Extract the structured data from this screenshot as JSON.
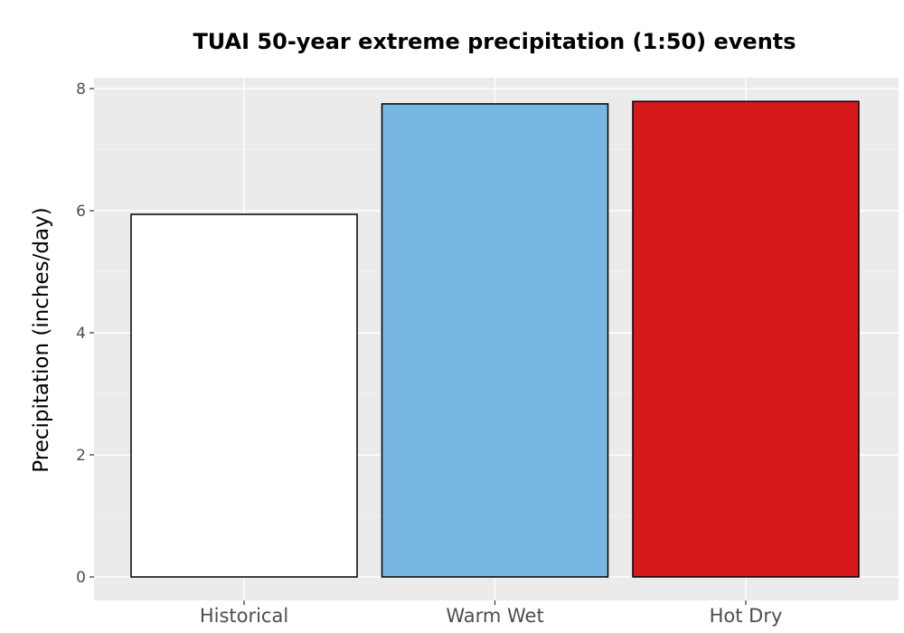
{
  "chart_data": {
    "type": "bar",
    "title": "TUAI 50-year extreme precipitation (1:50) events",
    "xlabel": "",
    "ylabel": "Precipitation (inches/day)",
    "categories": [
      "Historical",
      "Warm Wet",
      "Hot Dry"
    ],
    "values": [
      5.94,
      7.75,
      7.79
    ],
    "colors": [
      "#ffffff",
      "#78b7e1",
      "#d7191c"
    ],
    "bar_outline": "#000000",
    "ylim": [
      0,
      8
    ],
    "yticks": [
      "0",
      "2",
      "4",
      "6",
      "8"
    ],
    "panel_background": "#ebebeb",
    "grid": true,
    "legend": "none"
  }
}
